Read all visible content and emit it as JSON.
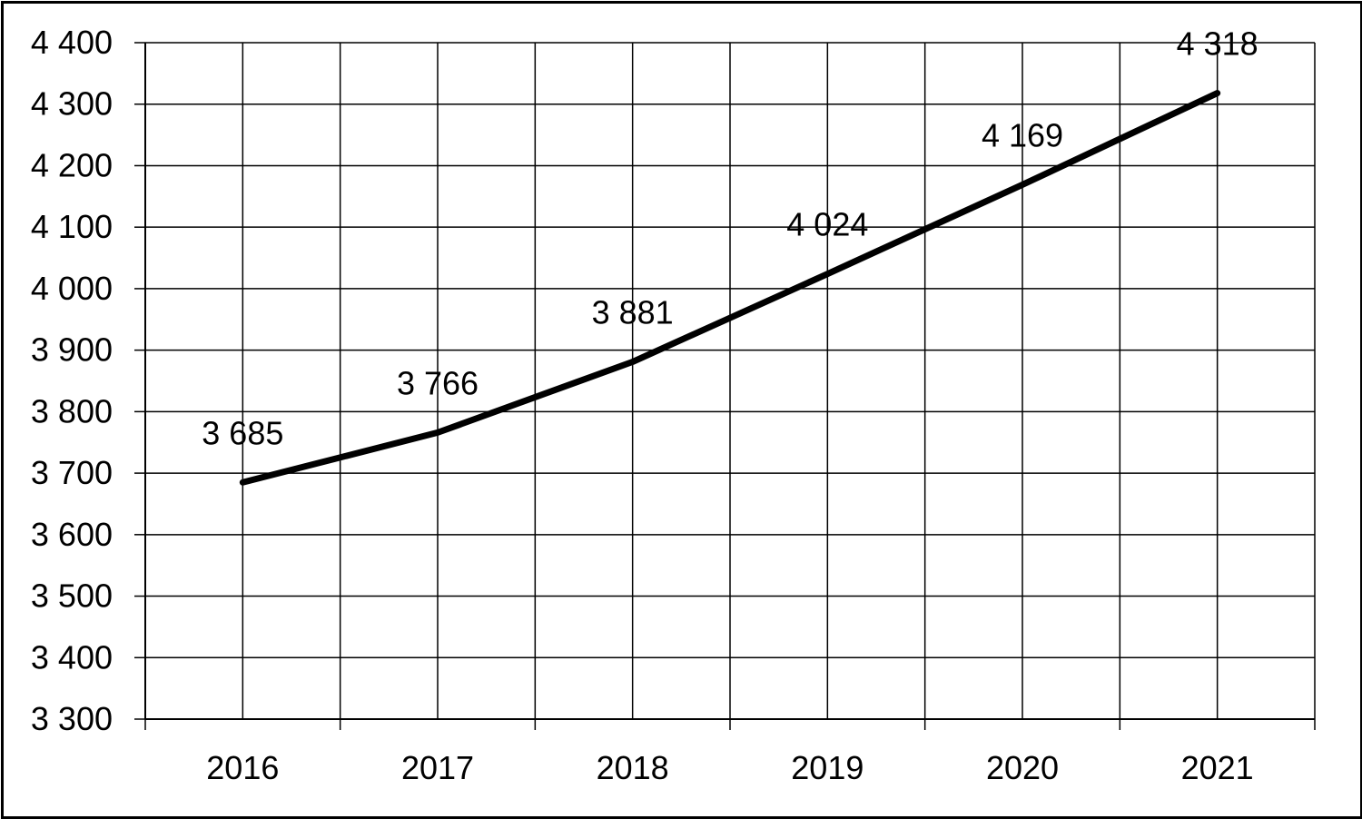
{
  "chart_data": {
    "type": "line",
    "title": "",
    "xlabel": "",
    "ylabel": "",
    "categories": [
      "2016",
      "2017",
      "2018",
      "2019",
      "2020",
      "2021"
    ],
    "series": [
      {
        "values": [
          3685,
          3766,
          3881,
          4024,
          4169,
          4318
        ],
        "labels": [
          "3 685",
          "3 766",
          "3 881",
          "4 024",
          "4 169",
          "4 318"
        ],
        "color": "#000000"
      }
    ],
    "ylim": [
      3300,
      4400
    ],
    "ytick_step": 100,
    "ytick_labels": [
      "3 300",
      "3 400",
      "3 500",
      "3 600",
      "3 700",
      "3 800",
      "3 900",
      "4 000",
      "4 100",
      "4 200",
      "4 300",
      "4 400"
    ],
    "grid": true,
    "legend": "none"
  }
}
